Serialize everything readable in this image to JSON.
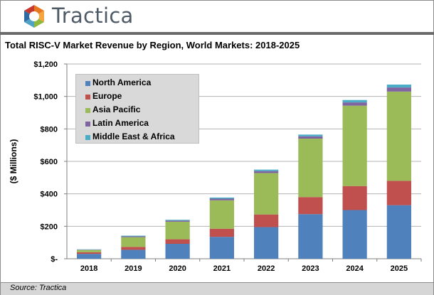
{
  "brand": {
    "name": "Tractica"
  },
  "chart_data": {
    "type": "bar",
    "stacked": true,
    "title": "Total RISC-V Market Revenue by Region, World Markets: 2018-2025",
    "xlabel": "",
    "ylabel": "($ Millions)",
    "ylim": [
      0,
      1200
    ],
    "yticks": [
      0,
      200,
      400,
      600,
      800,
      1000,
      1200
    ],
    "ytick_labels": [
      "$-",
      "$200",
      "$400",
      "$600",
      "$800",
      "$1,000",
      "$1,200"
    ],
    "grid": true,
    "legend_position": "top-left",
    "categories": [
      "2018",
      "2019",
      "2020",
      "2021",
      "2022",
      "2023",
      "2024",
      "2025"
    ],
    "series": [
      {
        "name": "North America",
        "color": "#4f81bd",
        "values": [
          30,
          55,
          92,
          135,
          195,
          275,
          300,
          330
        ]
      },
      {
        "name": "Europe",
        "color": "#c0504d",
        "values": [
          10,
          18,
          28,
          50,
          78,
          105,
          148,
          150
        ]
      },
      {
        "name": "Asia Pacific",
        "color": "#9bbb59",
        "values": [
          14,
          60,
          108,
          175,
          255,
          360,
          495,
          550
        ]
      },
      {
        "name": "Latin America",
        "color": "#8064a2",
        "values": [
          2,
          5,
          7,
          10,
          12,
          14,
          20,
          25
        ]
      },
      {
        "name": "Middle East & Africa",
        "color": "#4bacc6",
        "values": [
          2,
          4,
          5,
          7,
          9,
          11,
          15,
          18
        ]
      }
    ]
  },
  "source": "Source: Tractica"
}
